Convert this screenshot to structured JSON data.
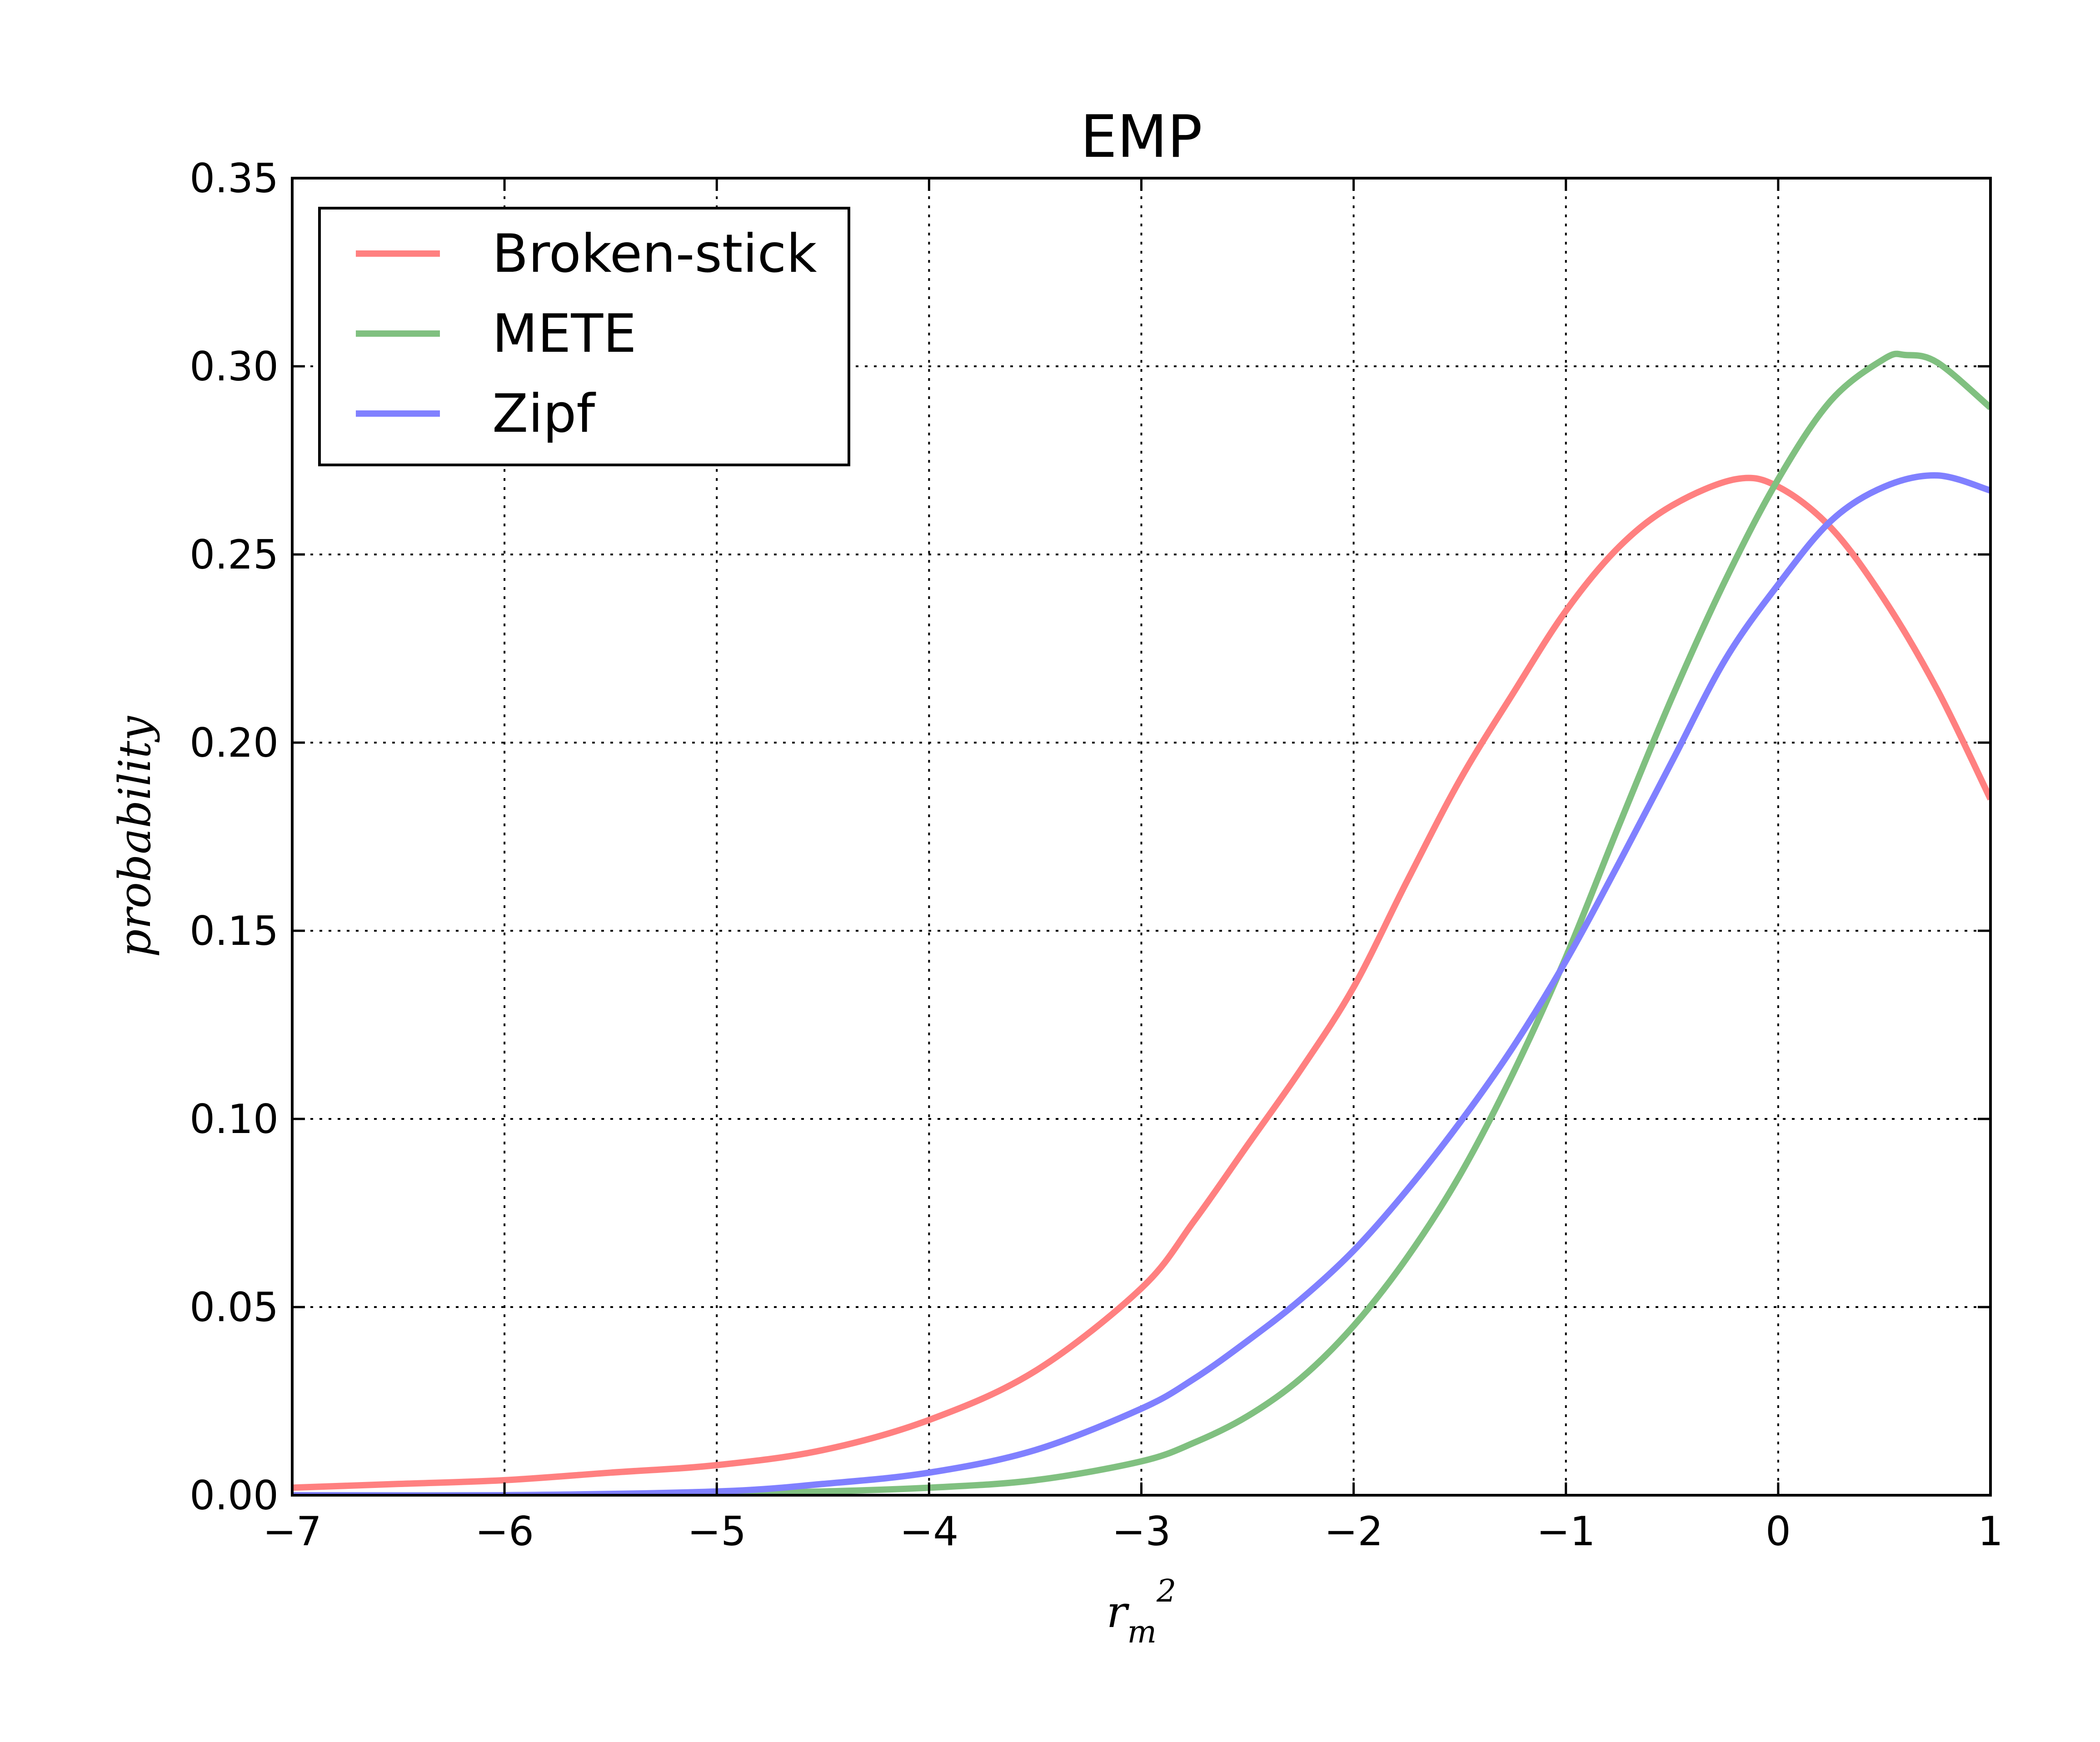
{
  "chart_data": {
    "type": "line",
    "title": "EMP",
    "xlabel": "r_m^2",
    "xlabel_main": "r",
    "xlabel_sub": "m",
    "xlabel_sup": "2",
    "ylabel": "probability",
    "xlim": [
      -7,
      1
    ],
    "ylim": [
      0,
      0.35
    ],
    "xticks": [
      -7,
      -6,
      -5,
      -4,
      -3,
      -2,
      -1,
      0,
      1
    ],
    "xtick_labels": [
      "−7",
      "−6",
      "−5",
      "−4",
      "−3",
      "−2",
      "−1",
      "0",
      "1"
    ],
    "yticks": [
      0,
      0.05,
      0.1,
      0.15,
      0.2,
      0.25,
      0.3,
      0.35
    ],
    "ytick_labels": [
      "0.00",
      "0.05",
      "0.10",
      "0.15",
      "0.20",
      "0.25",
      "0.30",
      "0.35"
    ],
    "grid": true,
    "legend_position": "top-left",
    "series": [
      {
        "name": "Broken-stick",
        "color": "#ff8080",
        "x": [
          -7,
          -6.5,
          -6,
          -5.5,
          -5,
          -4.5,
          -4,
          -3.5,
          -3,
          -2.75,
          -2.5,
          -2.25,
          -2,
          -1.75,
          -1.5,
          -1.25,
          -1,
          -0.75,
          -0.5,
          -0.2,
          0,
          0.25,
          0.5,
          0.75,
          1
        ],
        "y": [
          0.002,
          0.003,
          0.004,
          0.006,
          0.008,
          0.012,
          0.02,
          0.033,
          0.055,
          0.073,
          0.093,
          0.113,
          0.135,
          0.163,
          0.19,
          0.213,
          0.235,
          0.252,
          0.263,
          0.27,
          0.268,
          0.257,
          0.238,
          0.214,
          0.185
        ]
      },
      {
        "name": "METE",
        "color": "#80c080",
        "x": [
          -7,
          -6,
          -5,
          -4.5,
          -4,
          -3.5,
          -3,
          -2.75,
          -2.5,
          -2.25,
          -2,
          -1.75,
          -1.5,
          -1.25,
          -1,
          -0.75,
          -0.5,
          -0.25,
          0,
          0.25,
          0.5,
          0.6,
          0.75,
          1
        ],
        "y": [
          0,
          0,
          0.0005,
          0.001,
          0.002,
          0.004,
          0.009,
          0.014,
          0.021,
          0.031,
          0.045,
          0.063,
          0.085,
          0.112,
          0.143,
          0.178,
          0.212,
          0.243,
          0.27,
          0.291,
          0.302,
          0.303,
          0.301,
          0.289
        ]
      },
      {
        "name": "Zipf",
        "color": "#8080ff",
        "x": [
          -7,
          -6,
          -5,
          -4.5,
          -4,
          -3.5,
          -3,
          -2.75,
          -2.5,
          -2.25,
          -2,
          -1.75,
          -1.5,
          -1.25,
          -1,
          -0.75,
          -0.5,
          -0.25,
          0,
          0.25,
          0.5,
          0.75,
          1
        ],
        "y": [
          0,
          0,
          0.001,
          0.003,
          0.006,
          0.012,
          0.023,
          0.031,
          0.041,
          0.052,
          0.065,
          0.081,
          0.099,
          0.119,
          0.142,
          0.168,
          0.195,
          0.222,
          0.242,
          0.259,
          0.268,
          0.271,
          0.267
        ]
      }
    ]
  }
}
